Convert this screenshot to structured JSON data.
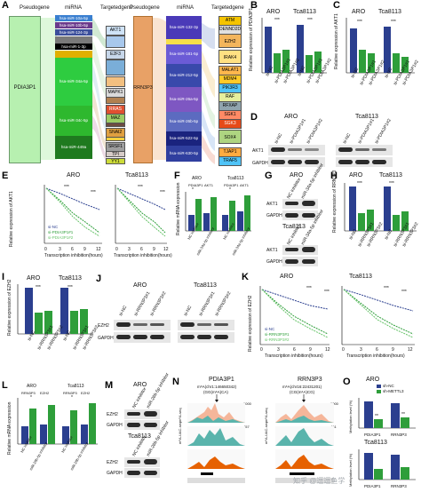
{
  "colors": {
    "dark_blue": "#2b3f8f",
    "green": "#2e9e3a",
    "light_green": "#68c46a",
    "pdia_green": "#b7f0b0",
    "rrn_orange": "#e8a166"
  },
  "panel_A": {
    "letter": "A",
    "pseudogene_header": "Pseudogene",
    "mirna_header": "miRNA",
    "target_header": "Targetedgene",
    "pseudogene_left": "PDIA3P1",
    "pseudogene_right": "RRN3P3",
    "left_mirnas": [
      "hsa-miR-10a-5p",
      "hsa-miR-10b-5p",
      "hsa-miR-124-3p",
      "hsa-miR-1-3p",
      "",
      "hsa-miR-34a-5p",
      "hsa-miR-34c-5p",
      "hsa-miR-449a"
    ],
    "left_targets": [
      "AKT1",
      "",
      "E2F3",
      "",
      "",
      "MAPK1",
      "",
      "RRAS",
      "MAZ",
      "",
      "SNAI2",
      "",
      "SRSF1",
      "TPI",
      "YY1"
    ],
    "right_mirnas": [
      "hsa-miR-132-3p",
      "hsa-miR-181-5p",
      "hsa-miR-212-5p",
      "hsa-miR-26a-5p",
      "hsa-miR-26b-5p",
      "hsa-miR-522-5p",
      "hsa-miR-630-5p"
    ],
    "right_targets": [
      "ATM",
      "DENND2D",
      "EZH2",
      "IRAK4",
      "MALAT1",
      "MDM4",
      "PIK3R3",
      "RAF",
      "RFXAP",
      "SGK1",
      "SGK3",
      "SOX4",
      "TJAP1",
      "TRAF5"
    ]
  },
  "panel_B": {
    "letter": "B",
    "groups": [
      "ARO",
      "Tca8113"
    ],
    "ylabel": "Relative expression of PDIA3P1",
    "xlabels": [
      "si-NC",
      "si-PDIA3P1#1",
      "si-PDIA3P1#2"
    ],
    "stars": "***"
  },
  "panel_C": {
    "letter": "C",
    "groups": [
      "ARO",
      "Tca8113"
    ],
    "ylabel": "Relative expression of AKT1",
    "xlabels": [
      "si-NC",
      "si-PDIA3P1#1",
      "si-PDIA3P1#2"
    ],
    "stars": "***"
  },
  "panel_D": {
    "letter": "D",
    "groups": [
      "ARO",
      "Tca8113"
    ],
    "lanes": [
      "si-NC",
      "si-PDIA3P1#1",
      "si-PDIA3P1#2"
    ],
    "rows": [
      "AKT1",
      "GAPDH"
    ]
  },
  "panel_E": {
    "letter": "E",
    "groups": [
      "ARO",
      "Tca8113"
    ],
    "ylabel": "Relative expression of AKT1",
    "xlabel": "Transcription inhibition(hours)",
    "xticks": [
      "0",
      "3",
      "6",
      "9",
      "12"
    ],
    "legend": [
      "si-NC",
      "si-PDIA3P1#1",
      "si-PDIA3P1#2"
    ],
    "stars": "***"
  },
  "panel_F": {
    "letter": "F",
    "groups": [
      "ARO",
      "Tca8113"
    ],
    "ylabel": "Relative mRNA expression",
    "sub_genes": [
      "PDIA3P1",
      "AKT1"
    ],
    "xlabels": [
      "NC inhibitor",
      "miR-34a-5p inhibitor"
    ],
    "stars": "*"
  },
  "panel_G": {
    "letter": "G",
    "groups": [
      "ARO",
      "Tca8113"
    ],
    "lanes": [
      "NC inhibitor",
      "miR-34a-5p inhibitor"
    ],
    "rows": [
      "AKT1",
      "GAPDH"
    ]
  },
  "panel_H": {
    "letter": "H",
    "groups": [
      "ARO",
      "Tca8113"
    ],
    "ylabel": "Relative expression of RRN3P3",
    "xlabels": [
      "si-NC",
      "si-RRN3P3#1",
      "si-RRN3P3#2"
    ],
    "stars": "***"
  },
  "panel_I": {
    "letter": "I",
    "groups": [
      "ARO",
      "Tca8113"
    ],
    "ylabel": "Relative expression of EZH2",
    "xlabels": [
      "si-NC",
      "si-RRN3P3#1",
      "si-RRN3P3#2"
    ],
    "stars": "***"
  },
  "panel_J": {
    "letter": "J",
    "groups": [
      "ARO",
      "Tca8113"
    ],
    "lanes": [
      "si-NC",
      "si-RRN3P3#1",
      "si-RRN3P3#2"
    ],
    "rows": [
      "EZH2",
      "GAPDH"
    ]
  },
  "panel_K": {
    "letter": "K",
    "groups": [
      "ARO",
      "Tca8113"
    ],
    "ylabel": "Relative expression of EZH2",
    "xlabel": "Transcription inhibition(hours)",
    "xticks": [
      "0",
      "3",
      "6",
      "9",
      "12"
    ],
    "legend": [
      "si-NC",
      "si-RRN3P3#1",
      "si-RRN3P3#2"
    ],
    "stars": "***"
  },
  "panel_L": {
    "letter": "L",
    "groups": [
      "ARO",
      "Tca8113"
    ],
    "ylabel": "Relative mRNA expression",
    "sub_genes": [
      "RRN3P3",
      "EZH2"
    ],
    "xlabels": [
      "NC inhibitor",
      "miR-26b-5p inhibitor"
    ],
    "stars": "*"
  },
  "panel_M": {
    "letter": "M",
    "groups": [
      "ARO",
      "Tca8113"
    ],
    "lanes": [
      "NC inhibitor",
      "miR-26b-5p inhibitor"
    ],
    "rows": [
      "EZH2",
      "GAPDH"
    ]
  },
  "panel_N": {
    "letter": "N",
    "left_gene": "PDIA3P1",
    "right_gene": "RRN3P3",
    "left_site": "m⁶A(chr1:146650342)",
    "left_motif": "(GG(m⁶A)CA)",
    "right_site": "m⁶A(chr16:22431201)",
    "right_motif": "(CG(m⁶A)CG)",
    "track_labels": [
      "m⁶A-seq",
      "m⁶A-seq",
      "m⁶A-UAC-seq",
      "m⁶A-UAC-seq"
    ],
    "track_values": [
      "1000",
      "1000",
      "457",
      "461"
    ]
  },
  "panel_O": {
    "letter": "O",
    "top_group": "ARO",
    "bottom_group": "Tca8113",
    "legend": [
      "sh-NC",
      "sh-METTL3"
    ],
    "ylabel": "Methylation level (%)",
    "xlabels": [
      "PDIA3P1",
      "RRN3P3"
    ],
    "stars": "**"
  },
  "watermark": "知乎 @逗逗鱼学"
}
